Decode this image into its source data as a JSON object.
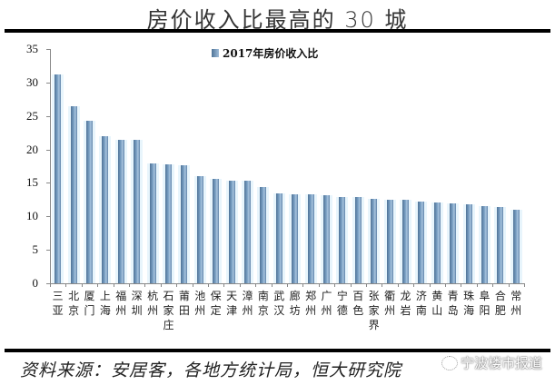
{
  "header": {
    "title": "房价收入比最高的 30 城"
  },
  "legend": {
    "label": "2017年房价收入比"
  },
  "source": {
    "text": "资料来源：安居客，各地方统计局，恒大研究院"
  },
  "watermark": {
    "text": "宁波楼市报道"
  },
  "colors": {
    "bar": "#5f86ad",
    "axis": "#888888",
    "rule": "#000000"
  },
  "chart_data": {
    "type": "bar",
    "title": "房价收入比最高的 30 城",
    "xlabel": "",
    "ylabel": "",
    "ylim": [
      0,
      35
    ],
    "yticks": [
      0,
      5,
      10,
      15,
      20,
      25,
      30,
      35
    ],
    "grid": false,
    "legend_position": "top-center",
    "series": [
      {
        "name": "2017年房价收入比",
        "values": [
          31.2,
          26.5,
          24.3,
          22.0,
          21.4,
          21.4,
          17.9,
          17.8,
          17.6,
          16.0,
          15.6,
          15.3,
          15.3,
          14.4,
          13.4,
          13.3,
          13.3,
          13.2,
          12.9,
          12.9,
          12.6,
          12.5,
          12.5,
          12.2,
          12.1,
          11.9,
          11.8,
          11.5,
          11.4,
          11.0
        ]
      }
    ],
    "categories": [
      "三亚",
      "北京",
      "厦门",
      "上海",
      "福州",
      "深圳",
      "杭州",
      "石家庄",
      "莆田",
      "池州",
      "保定",
      "天津",
      "漳州",
      "南京",
      "武汉",
      "廊坊",
      "郑州",
      "广州",
      "宁德",
      "百色",
      "张家界",
      "衢州",
      "龙岩",
      "济南",
      "黄山",
      "青岛",
      "珠海",
      "阜阳",
      "合肥",
      "常州"
    ]
  }
}
